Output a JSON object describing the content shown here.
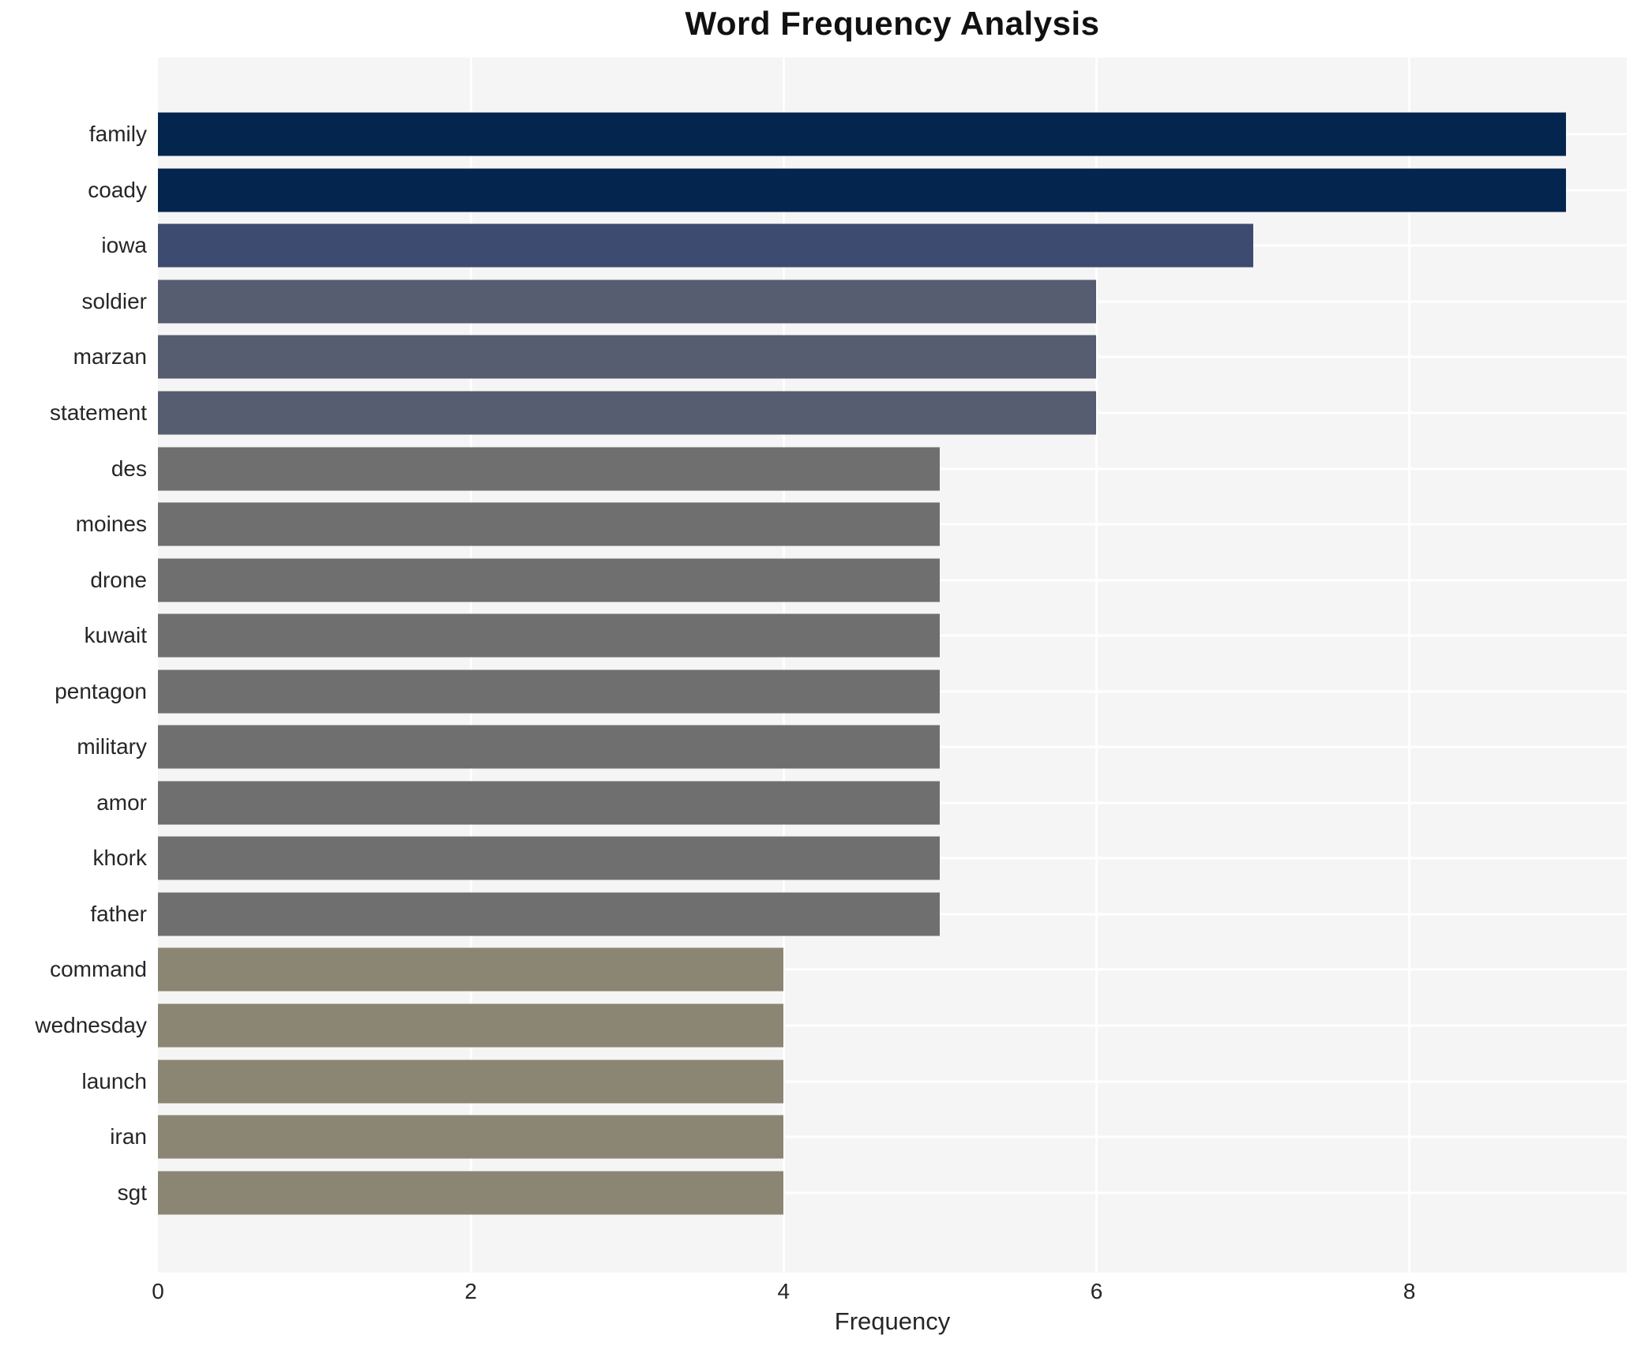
{
  "title": "Word Frequency Analysis",
  "chart_data": {
    "type": "bar",
    "orientation": "horizontal",
    "title": "Word Frequency Analysis",
    "xlabel": "Frequency",
    "ylabel": "",
    "categories": [
      "family",
      "coady",
      "iowa",
      "soldier",
      "marzan",
      "statement",
      "des",
      "moines",
      "drone",
      "kuwait",
      "pentagon",
      "military",
      "amor",
      "khork",
      "father",
      "command",
      "wednesday",
      "launch",
      "iran",
      "sgt"
    ],
    "values": [
      9,
      9,
      7,
      6,
      6,
      6,
      5,
      5,
      5,
      5,
      5,
      5,
      5,
      5,
      5,
      4,
      4,
      4,
      4,
      4
    ],
    "bar_colors": [
      "#03254e",
      "#03254e",
      "#3e4b70",
      "#565d70",
      "#565d70",
      "#565d70",
      "#6f6f6f",
      "#6f6f6f",
      "#6f6f6f",
      "#6f6f6f",
      "#6f6f6f",
      "#6f6f6f",
      "#6f6f6f",
      "#6f6f6f",
      "#6f6f6f",
      "#8a8673",
      "#8a8673",
      "#8a8673",
      "#8a8673",
      "#8a8673"
    ],
    "x_ticks": [
      0,
      2,
      4,
      6,
      8
    ],
    "xlim": [
      0,
      9.39
    ],
    "grid": true,
    "legend": false,
    "plot_background": "#f5f5f5",
    "grid_color": "#ffffff",
    "text_color": "#262626"
  }
}
